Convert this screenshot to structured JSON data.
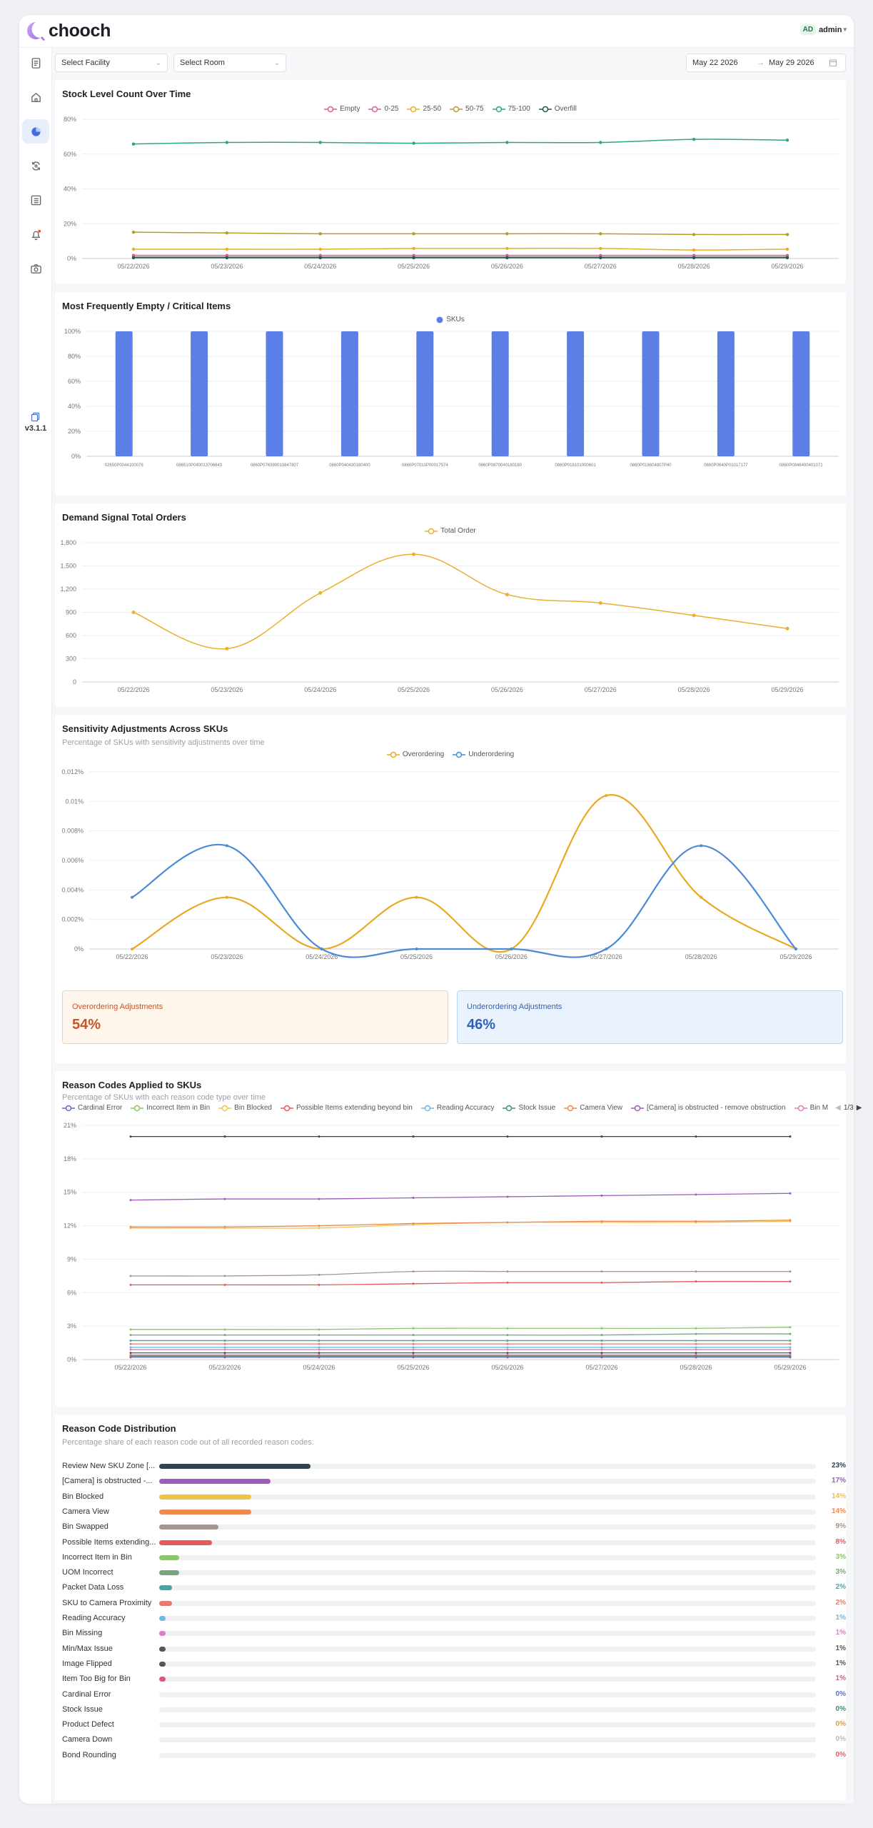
{
  "app": {
    "brand": "chooch",
    "user_initials": "AD",
    "user_name": "admin",
    "version": "v3.1.1"
  },
  "nav": [
    {
      "icon": "document-icon",
      "active": false
    },
    {
      "icon": "home-icon",
      "active": false
    },
    {
      "icon": "pie-chart-icon",
      "active": true
    },
    {
      "icon": "sync-icon",
      "active": false
    },
    {
      "icon": "list-icon",
      "active": false
    },
    {
      "icon": "bell-icon",
      "active": false,
      "badge": true
    },
    {
      "icon": "camera-icon",
      "active": false
    }
  ],
  "filters": {
    "facility_placeholder": "Select Facility",
    "room_placeholder": "Select Room",
    "date_start": "May 22 2026",
    "date_end": "May 29 2026"
  },
  "colors": {
    "accent": "#5b7fe6",
    "overordering": "#e9a822",
    "underordering": "#4a8ad6"
  },
  "dates": [
    "05/22/2026",
    "05/23/2026",
    "05/24/2026",
    "05/25/2026",
    "05/26/2026",
    "05/27/2026",
    "05/28/2026",
    "05/29/2026"
  ],
  "chart_data": [
    {
      "type": "line",
      "title": "Stock Level Count Over Time",
      "x": [
        "05/22/2026",
        "05/23/2026",
        "05/24/2026",
        "05/25/2026",
        "05/26/2026",
        "05/27/2026",
        "05/28/2026",
        "05/29/2026"
      ],
      "ylim": [
        0,
        90
      ],
      "yticks": [
        "0%",
        "20%",
        "40%",
        "60%",
        "80%"
      ],
      "series": [
        {
          "name": "Empty",
          "color": "#e0607e",
          "values": [
            1,
            1,
            1,
            1,
            1,
            1,
            1,
            1
          ]
        },
        {
          "name": "0-25",
          "color": "#d35fa0",
          "values": [
            2,
            2,
            2,
            2,
            2,
            2,
            2,
            2
          ]
        },
        {
          "name": "25-50",
          "color": "#e9b020",
          "values": [
            6,
            6,
            6,
            6.5,
            6.5,
            6.5,
            5.5,
            6
          ]
        },
        {
          "name": "50-75",
          "color": "#b89a2e",
          "values": [
            17,
            16.5,
            16,
            16,
            16,
            16,
            15.5,
            15.5
          ]
        },
        {
          "name": "75-100",
          "color": "#2fa57d",
          "values": [
            74,
            75,
            75,
            74.5,
            75,
            75,
            77,
            76.5
          ]
        },
        {
          "name": "Overfill",
          "color": "#1d5b49",
          "values": [
            0.5,
            0.5,
            0.5,
            0.5,
            0.5,
            0.5,
            0.5,
            0.5
          ]
        }
      ],
      "grid": true,
      "legend": "top-center"
    },
    {
      "type": "bar",
      "title": "Most Frequently Empty / Critical Items",
      "categories": [
        "02650P0044100078",
        "086510P040013706843",
        "0860P076390010847807",
        "0860P040430180400",
        "0860P07010P00017574",
        "0860P0870040180180",
        "0860P018101000601",
        "0860P018604807P40",
        "0860P0640P01017177",
        "0860P0846400401071"
      ],
      "series": [
        {
          "name": "SKUs",
          "values": [
            100,
            100,
            100,
            100,
            100,
            100,
            100,
            100,
            100,
            100
          ]
        }
      ],
      "ylim": [
        0,
        100
      ],
      "yticks": [
        "0%",
        "20%",
        "40%",
        "60%",
        "80%",
        "100%"
      ],
      "grid": true,
      "legend": "top-center"
    },
    {
      "type": "line",
      "title": "Demand Signal Total Orders",
      "x": [
        "05/22/2026",
        "05/23/2026",
        "05/24/2026",
        "05/25/2026",
        "05/26/2026",
        "05/27/2026",
        "05/28/2026",
        "05/29/2026"
      ],
      "series": [
        {
          "name": "Total Order",
          "values": [
            900,
            430,
            1150,
            1650,
            1130,
            1020,
            860,
            690
          ]
        }
      ],
      "ylim": [
        0,
        1800
      ],
      "yticks": [
        "0",
        "300",
        "600",
        "900",
        "1,200",
        "1,500",
        "1,800"
      ],
      "grid": true,
      "legend": "top-center"
    },
    {
      "type": "line",
      "title": "Sensitivity Adjustments Across SKUs",
      "subtitle": "Percentage of SKUs with sensitivity adjustments over time",
      "x": [
        "05/22/2026",
        "05/23/2026",
        "05/24/2026",
        "05/25/2026",
        "05/26/2026",
        "05/27/2026",
        "05/28/2026",
        "05/29/2026"
      ],
      "series": [
        {
          "name": "Overordering",
          "values": [
            0,
            0.0035,
            0,
            0.0035,
            0,
            0.0104,
            0.0035,
            0
          ]
        },
        {
          "name": "Underordering",
          "values": [
            0.0035,
            0.007,
            0,
            0,
            0,
            0,
            0.007,
            0
          ]
        }
      ],
      "ylim": [
        0,
        0.012
      ],
      "yticks": [
        "0%",
        "0.002%",
        "0.004%",
        "0.006%",
        "0.008%",
        "0.01%",
        "0.012%"
      ],
      "grid": true,
      "legend": "top-center"
    },
    {
      "type": "line",
      "title": "Reason Codes Applied to SKUs",
      "subtitle": "Percentage of SKUs with each reason code type over time",
      "x": [
        "05/22/2026",
        "05/23/2026",
        "05/24/2026",
        "05/25/2026",
        "05/26/2026",
        "05/27/2026",
        "05/28/2026",
        "05/29/2026"
      ],
      "ylim": [
        0,
        21
      ],
      "yticks": [
        "0%",
        "3%",
        "6%",
        "9%",
        "12%",
        "15%",
        "18%",
        "21%"
      ],
      "legend_page": "1/3",
      "series": [
        {
          "name": "Cardinal Error",
          "color": "#5b6fc4",
          "values": [
            0.2,
            0.2,
            0.2,
            0.2,
            0.2,
            0.2,
            0.2,
            0.2
          ]
        },
        {
          "name": "Incorrect Item in Bin",
          "color": "#8cc66a",
          "values": [
            2.7,
            2.7,
            2.7,
            2.8,
            2.8,
            2.8,
            2.8,
            2.9
          ]
        },
        {
          "name": "Bin Blocked",
          "color": "#efc24a",
          "values": [
            11.8,
            11.8,
            11.8,
            12.1,
            12.3,
            12.3,
            12.3,
            12.4
          ]
        },
        {
          "name": "Possible Items extending beyond bin",
          "color": "#e35a5a",
          "values": [
            6.7,
            6.7,
            6.7,
            6.8,
            6.9,
            6.9,
            7,
            7
          ]
        },
        {
          "name": "Reading Accuracy",
          "color": "#6bbbe0",
          "values": [
            1.1,
            1.1,
            1.1,
            1.1,
            1.1,
            1.1,
            1.1,
            1.1
          ]
        },
        {
          "name": "Stock Issue",
          "color": "#3a9468",
          "values": [
            0.3,
            0.3,
            0.3,
            0.3,
            0.3,
            0.3,
            0.3,
            0.3
          ]
        },
        {
          "name": "Camera View",
          "color": "#ee8a4e",
          "values": [
            11.9,
            11.9,
            12,
            12.2,
            12.3,
            12.4,
            12.4,
            12.5
          ]
        },
        {
          "name": "[Camera] is obstructed - remove obstruction",
          "color": "#9b5db8",
          "values": [
            14.3,
            14.4,
            14.4,
            14.5,
            14.6,
            14.7,
            14.8,
            14.9
          ]
        },
        {
          "name": "Bin M",
          "color": "#e37bbf",
          "values": [
            0.9,
            0.9,
            0.9,
            0.9,
            0.9,
            0.9,
            0.9,
            0.9
          ]
        },
        {
          "name": "",
          "color": "#30434e",
          "values": [
            20,
            20,
            20,
            20,
            20,
            20,
            20,
            20
          ]
        },
        {
          "name": "",
          "color": "#a8968c",
          "values": [
            7.5,
            7.5,
            7.6,
            7.9,
            7.9,
            7.9,
            7.9,
            7.9
          ]
        },
        {
          "name": "",
          "color": "#78a57c",
          "values": [
            2.2,
            2.2,
            2.2,
            2.2,
            2.2,
            2.2,
            2.3,
            2.3
          ]
        },
        {
          "name": "",
          "color": "#4aa5a0",
          "values": [
            1.7,
            1.7,
            1.7,
            1.7,
            1.7,
            1.7,
            1.7,
            1.7
          ]
        },
        {
          "name": "",
          "color": "#e37c6a",
          "values": [
            1.4,
            1.4,
            1.4,
            1.4,
            1.4,
            1.4,
            1.4,
            1.4
          ]
        },
        {
          "name": "",
          "color": "#555555",
          "values": [
            0.6,
            0.6,
            0.6,
            0.6,
            0.6,
            0.6,
            0.6,
            0.6
          ]
        },
        {
          "name": "",
          "color": "#d9597d",
          "values": [
            0.4,
            0.4,
            0.4,
            0.4,
            0.4,
            0.4,
            0.4,
            0.4
          ]
        }
      ],
      "grid": true,
      "legend": "top-left"
    },
    {
      "type": "bar",
      "title": "Reason Code Distribution",
      "subtitle": "Percentage share of each reason code out of all recorded reason codes.",
      "categories": [
        "Review New SKU Zone [...",
        "[Camera] is obstructed -...",
        "Bin Blocked",
        "Camera View",
        "Bin Swapped",
        "Possible Items extending...",
        "Incorrect Item in Bin",
        "UOM Incorrect",
        "Packet Data Loss",
        "SKU to Camera Proximity",
        "Reading Accuracy",
        "Bin Missing",
        "Min/Max Issue",
        "Image Flipped",
        "Item Too Big for Bin",
        "Cardinal Error",
        "Stock Issue",
        "Product Defect",
        "Camera Down",
        "Bond Rounding"
      ],
      "values": [
        23,
        17,
        14,
        14,
        9,
        8,
        3,
        3,
        2,
        2,
        1,
        1,
        1,
        1,
        1,
        0,
        0,
        0,
        0,
        0
      ],
      "labels": [
        "23%",
        "17%",
        "14%",
        "14%",
        "9%",
        "8%",
        "3%",
        "3%",
        "2%",
        "2%",
        "1%",
        "1%",
        "1%",
        "1%",
        "1%",
        "0%",
        "0%",
        "0%",
        "0%",
        "0%"
      ],
      "colors": [
        "#30434e",
        "#9b5db8",
        "#efc24a",
        "#ee8a4e",
        "#a8968c",
        "#e35a5a",
        "#8cc66a",
        "#78a57c",
        "#4aa5a0",
        "#e37c6a",
        "#6bbbe0",
        "#e37bbf",
        "#555555",
        "#555555",
        "#d9597d",
        "#5b6fc4",
        "#3a9468",
        "#d6a040",
        "#bbbbbb",
        "#e06060"
      ]
    }
  ],
  "summary": {
    "over_label": "Overordering Adjustments",
    "over_value": "54%",
    "under_label": "Underordering Adjustments",
    "under_value": "46%"
  }
}
